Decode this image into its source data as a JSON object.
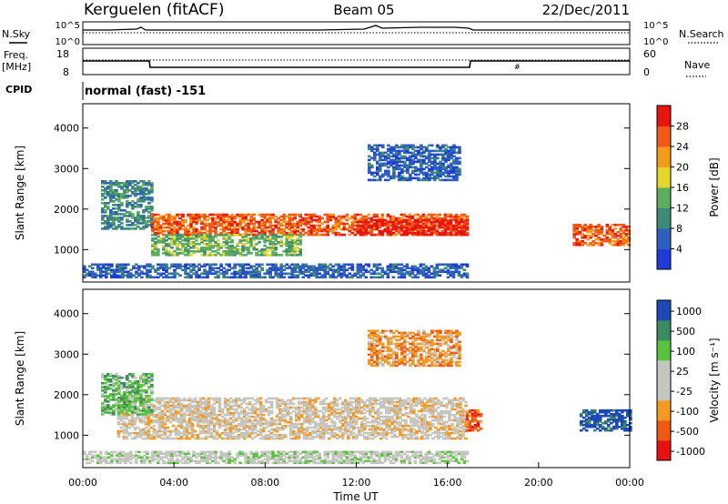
{
  "header": {
    "station": "Kerguelen (fitACF)",
    "beam": "Beam 05",
    "date": "22/Dec/2011"
  },
  "labels": {
    "nsky": "N.Sky",
    "nsearch": "N.Search",
    "freq": "Freq.",
    "freq_unit": "[MHz]",
    "nave": "Nave",
    "cpid": "CPID",
    "cpid_value": "normal (fast) -151",
    "noise_ticks_left": [
      "10^5",
      "10^0"
    ],
    "noise_ticks_right": [
      "10^5",
      "10^0"
    ],
    "freq_ticks": [
      "18",
      "8"
    ],
    "nave_ticks": [
      "60",
      "0"
    ]
  },
  "colors": {
    "power": [
      "#1f3bd6",
      "#2e5fbf",
      "#3d8a76",
      "#5cae5c",
      "#e6d52c",
      "#f59b1c",
      "#f05a16",
      "#e8150e"
    ],
    "velocity": [
      "#e81010",
      "#ee5a14",
      "#f39a22",
      "#c6c6c0",
      "#c6c6c0",
      "#58c43e",
      "#3c8a62",
      "#1c48b8"
    ],
    "ground_scatter": "#c6c6c0"
  },
  "chart_data": [
    {
      "type": "heatmap",
      "name": "power",
      "xlabel": "",
      "ylabel": "Slant Range [km]",
      "xlim": [
        0,
        24
      ],
      "ylim": [
        200,
        4600
      ],
      "yticks": [
        "1000",
        "2000",
        "3000",
        "4000"
      ],
      "colorbar": {
        "label": "Power [dB]",
        "ticks": [
          "4",
          "8",
          "12",
          "16",
          "20",
          "24",
          "28"
        ]
      },
      "bands": [
        {
          "t": [
            0.8,
            3.0
          ],
          "r": [
            1500,
            2700
          ],
          "level": 2
        },
        {
          "t": [
            3.0,
            16.8
          ],
          "r": [
            1350,
            1850
          ],
          "level": 6
        },
        {
          "t": [
            3.0,
            9.5
          ],
          "r": [
            850,
            1350
          ],
          "level": 3
        },
        {
          "t": [
            12.0,
            16.8
          ],
          "r": [
            1350,
            1750
          ],
          "level": 7
        },
        {
          "t": [
            0.0,
            16.8
          ],
          "r": [
            300,
            650
          ],
          "level": 1
        },
        {
          "t": [
            12.5,
            16.5
          ],
          "r": [
            2700,
            3600
          ],
          "level": 1
        },
        {
          "t": [
            21.5,
            24.0
          ],
          "r": [
            1100,
            1600
          ],
          "level": 6
        }
      ]
    },
    {
      "type": "heatmap",
      "name": "velocity",
      "xlabel": "Time UT",
      "ylabel": "Slant Range [km]",
      "xlim": [
        0,
        24
      ],
      "ylim": [
        200,
        4600
      ],
      "yticks": [
        "1000",
        "2000",
        "3000",
        "4000"
      ],
      "xticks": [
        "00:00",
        "04:00",
        "08:00",
        "12:00",
        "16:00",
        "20:00",
        "00:00"
      ],
      "colorbar": {
        "label": "Velocity [m s⁻¹]",
        "ticks": [
          "1000",
          "500",
          "100",
          "25",
          "-25",
          "-100",
          "-500",
          "-1000"
        ]
      },
      "bands": [
        {
          "t": [
            1.5,
            16.8
          ],
          "r": [
            900,
            1900
          ],
          "level": 3
        },
        {
          "t": [
            0.8,
            3.0
          ],
          "r": [
            1500,
            2500
          ],
          "level": 5
        },
        {
          "t": [
            21.8,
            24.0
          ],
          "r": [
            1100,
            1600
          ],
          "level": 7
        },
        {
          "t": [
            16.8,
            17.5
          ],
          "r": [
            1100,
            1600
          ],
          "level": 1
        },
        {
          "t": [
            12.5,
            16.5
          ],
          "r": [
            2700,
            3600
          ],
          "level": 2
        },
        {
          "t": [
            0.0,
            16.8
          ],
          "r": [
            300,
            600
          ],
          "level": 4
        }
      ]
    }
  ]
}
